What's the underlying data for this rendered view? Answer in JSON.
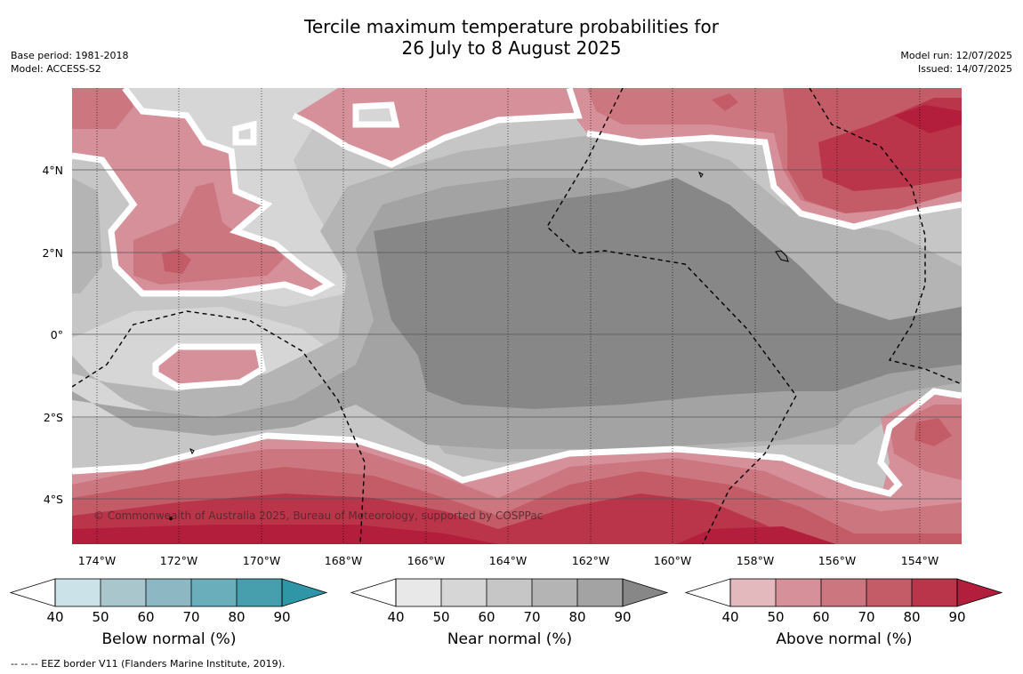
{
  "header": {
    "title_line1": "Tercile maximum temperature probabilities for",
    "title_line2": "26 July to 8 August 2025",
    "base_period": "Base period: 1981-2018",
    "model": "Model: ACCESS-S2",
    "model_run": "Model run: 12/07/2025",
    "issued": "Issued: 14/07/2025"
  },
  "map": {
    "copyright": "© Commonwealth of Australia 2025, Bureau of Meteorology, supported by COSPPac",
    "lon_labels": [
      "174°W",
      "172°W",
      "170°W",
      "168°W",
      "166°W",
      "164°W",
      "162°W",
      "160°W",
      "158°W",
      "156°W",
      "154°W"
    ],
    "lat_labels": [
      "4°N",
      "2°N",
      "0°",
      "2°S",
      "4°S"
    ]
  },
  "colorbars": [
    {
      "label": "Below normal (%)",
      "ticks": [
        "40",
        "50",
        "60",
        "70",
        "80",
        "90"
      ],
      "colors": [
        "#cbe3e8",
        "#a8c6cb",
        "#8cb7c3",
        "#6baebb",
        "#479fae"
      ],
      "arrow_color": "#2f96a8"
    },
    {
      "label": "Near normal (%)",
      "ticks": [
        "40",
        "50",
        "60",
        "70",
        "80",
        "90"
      ],
      "colors": [
        "#e8e8e8",
        "#d6d6d6",
        "#c6c6c6",
        "#b4b4b4",
        "#a3a3a3"
      ],
      "arrow_color": "#878787"
    },
    {
      "label": "Above normal (%)",
      "ticks": [
        "40",
        "50",
        "60",
        "70",
        "80",
        "90"
      ],
      "colors": [
        "#e3b9be",
        "#d6909a",
        "#cc7680",
        "#c35c67",
        "#ba344a"
      ],
      "arrow_color": "#b21e3c"
    }
  ],
  "footnote": "-- -- -- EEZ border V11 (Flanders Marine Institute, 2019)."
}
